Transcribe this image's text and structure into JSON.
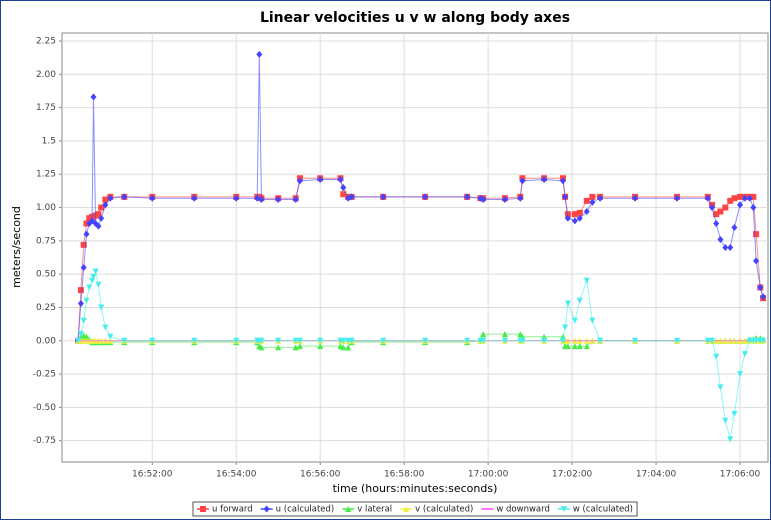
{
  "chart_data": {
    "type": "line",
    "title": "Linear velocities u v w along body axes",
    "xlabel": "time (hours:minutes:seconds)",
    "ylabel": "meters/second",
    "grid": true,
    "legend": "bottom",
    "xlim": [
      "16:49:51",
      "17:06:40"
    ],
    "xticks": [
      "16:52:00",
      "16:54:00",
      "16:56:00",
      "16:58:00",
      "17:00:00",
      "17:02:00",
      "17:04:00",
      "17:06:00"
    ],
    "ylim": [
      -0.91,
      2.31
    ],
    "yticks": [
      {
        "value": 2.25,
        "label": "2.25"
      },
      {
        "value": 2,
        "label": "2.00"
      },
      1.75,
      1.5,
      1.25,
      {
        "value": 1,
        "label": "1.00"
      },
      0.75,
      {
        "value": 0.5,
        "label": "0.50"
      },
      0.25,
      {
        "value": 0,
        "label": "0.00"
      },
      -0.25,
      {
        "value": -0.5,
        "label": "-0.50"
      },
      -0.75
    ],
    "x": [
      "16:50:14",
      "16:50:18",
      "16:50:22",
      "16:50:26",
      "16:50:30",
      "16:50:34",
      "16:50:36",
      "16:50:39",
      "16:50:43",
      "16:50:47",
      "16:50:53",
      "16:51:00",
      "16:51:20",
      "16:52:00",
      "16:53:00",
      "16:54:00",
      "16:54:30",
      "16:54:33",
      "16:54:36",
      "16:55:00",
      "16:55:25",
      "16:55:31",
      "16:56:00",
      "16:56:29",
      "16:56:33",
      "16:56:40",
      "16:56:45",
      "16:57:30",
      "16:58:30",
      "16:59:30",
      "16:59:49",
      "16:59:53",
      "17:00:24",
      "17:00:46",
      "17:00:49",
      "17:01:20",
      "17:01:47",
      "17:01:50",
      "17:01:54",
      "17:02:04",
      "17:02:11",
      "17:02:21",
      "17:02:29",
      "17:02:40",
      "17:03:30",
      "17:04:30",
      "17:05:14",
      "17:05:20",
      "17:05:26",
      "17:05:32",
      "17:05:39",
      "17:05:46",
      "17:05:52",
      "17:06:00",
      "17:06:07",
      "17:06:14",
      "17:06:19",
      "17:06:23",
      "17:06:29",
      "17:06:33"
    ],
    "series": [
      {
        "name": "u forward",
        "color": "#ff4444",
        "marker": "square",
        "values": [
          0,
          0.38,
          0.72,
          0.88,
          0.92,
          0.93,
          0.93,
          0.94,
          0.95,
          1.0,
          1.06,
          1.08,
          1.08,
          1.08,
          1.08,
          1.08,
          1.08,
          1.08,
          1.07,
          1.07,
          1.07,
          1.22,
          1.22,
          1.22,
          1.1,
          1.08,
          1.08,
          1.08,
          1.08,
          1.08,
          1.07,
          1.07,
          1.07,
          1.08,
          1.22,
          1.22,
          1.22,
          1.08,
          0.95,
          0.95,
          0.96,
          1.05,
          1.08,
          1.08,
          1.08,
          1.08,
          1.08,
          1.02,
          0.95,
          0.97,
          1.0,
          1.05,
          1.07,
          1.08,
          1.08,
          1.08,
          1.08,
          0.8,
          0.4,
          0.32
        ]
      },
      {
        "name": "u (calculated)",
        "color": "#4444ff",
        "marker": "diamond",
        "values": [
          0,
          0.28,
          0.55,
          0.8,
          0.88,
          0.9,
          1.83,
          0.88,
          0.86,
          0.92,
          1.02,
          1.07,
          1.08,
          1.07,
          1.07,
          1.07,
          1.07,
          2.15,
          1.06,
          1.06,
          1.06,
          1.2,
          1.21,
          1.21,
          1.15,
          1.07,
          1.08,
          1.08,
          1.08,
          1.08,
          1.07,
          1.06,
          1.06,
          1.07,
          1.2,
          1.21,
          1.2,
          1.08,
          0.92,
          0.9,
          0.92,
          0.97,
          1.04,
          1.07,
          1.07,
          1.07,
          1.07,
          1.0,
          0.88,
          0.76,
          0.7,
          0.7,
          0.85,
          1.02,
          1.07,
          1.07,
          1.0,
          0.6,
          0.4,
          0.33
        ]
      },
      {
        "name": "v lateral",
        "color": "#44ee44",
        "marker": "triangle-up",
        "values": [
          0,
          0.03,
          0.04,
          0.03,
          0.01,
          -0.01,
          -0.01,
          -0.01,
          -0.01,
          -0.01,
          -0.01,
          -0.01,
          -0.01,
          -0.01,
          -0.01,
          -0.01,
          -0.01,
          -0.04,
          -0.05,
          -0.05,
          -0.05,
          -0.04,
          -0.04,
          -0.04,
          -0.05,
          -0.05,
          -0.01,
          -0.01,
          -0.01,
          -0.01,
          0,
          0.05,
          0.05,
          0.05,
          0.03,
          0.03,
          0.03,
          -0.04,
          -0.04,
          -0.04,
          -0.04,
          -0.04,
          0,
          0,
          0,
          0,
          0,
          0,
          0,
          0,
          0,
          0,
          0,
          0,
          0,
          0.01,
          0.01,
          0.02,
          0.02,
          0.01
        ]
      },
      {
        "name": "v (calculated)",
        "color": "#eeee44",
        "marker": "triangle-up",
        "values": [
          0,
          0,
          0,
          0,
          0,
          0,
          0,
          0,
          0,
          0,
          0,
          0,
          0,
          0,
          0,
          0,
          0,
          0,
          0,
          0,
          0,
          0,
          0,
          0,
          0,
          0,
          0,
          0,
          0,
          0,
          0,
          0,
          0,
          0,
          0,
          0,
          0,
          0,
          0,
          0,
          0,
          0,
          0,
          0,
          0,
          0,
          0,
          0,
          0,
          0,
          0,
          0,
          0,
          0,
          0,
          0,
          0,
          0,
          0,
          0
        ]
      },
      {
        "name": "w downward",
        "color": "#ff44ff",
        "marker": "none",
        "values": [
          0,
          0,
          0,
          0,
          0,
          0,
          0,
          0,
          0,
          0,
          0,
          0,
          0,
          0,
          0,
          0,
          0,
          0,
          0,
          0,
          0,
          0,
          0,
          0,
          0,
          0,
          0,
          0,
          0,
          0,
          0,
          0,
          0,
          0,
          0,
          0,
          0,
          0,
          0,
          0,
          0,
          0,
          0,
          0,
          0,
          0,
          0,
          0,
          0,
          0,
          0,
          0,
          0,
          0,
          0,
          0,
          0,
          0,
          0,
          0
        ]
      },
      {
        "name": "w (calculated)",
        "color": "#44eeee",
        "marker": "triangle-down",
        "values": [
          0,
          0.05,
          0.15,
          0.3,
          0.4,
          0.45,
          0.48,
          0.52,
          0.42,
          0.25,
          0.1,
          0.03,
          0,
          0,
          0,
          0,
          0,
          0,
          0,
          0,
          0,
          0,
          0,
          0,
          0,
          0,
          0,
          0,
          0,
          0,
          0,
          0,
          0,
          0,
          0,
          0,
          0,
          0.1,
          0.28,
          0.15,
          0.3,
          0.45,
          0.15,
          0,
          0,
          0,
          0,
          0,
          -0.12,
          -0.35,
          -0.6,
          -0.74,
          -0.55,
          -0.25,
          -0.1,
          0,
          0,
          0,
          0,
          0
        ]
      }
    ]
  }
}
